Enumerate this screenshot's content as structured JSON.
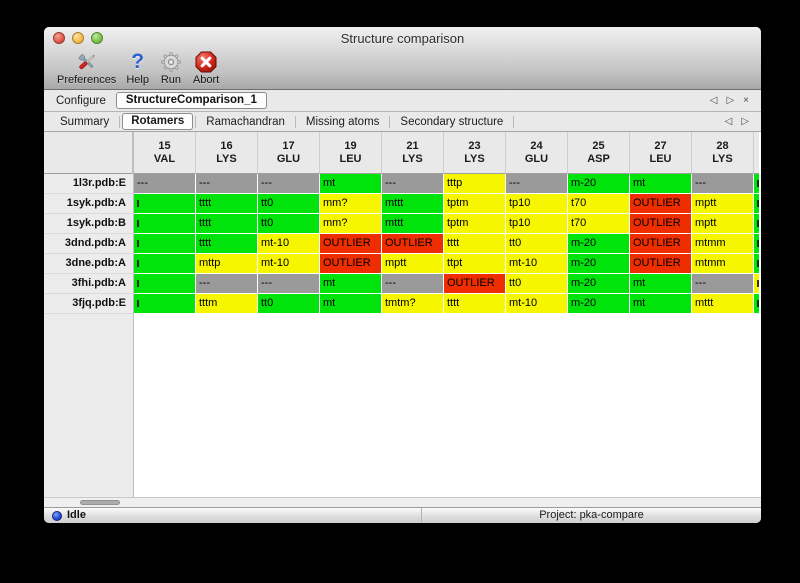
{
  "window_title": "Structure comparison",
  "toolbar": {
    "preferences": "Preferences",
    "help": "Help",
    "help_glyph": "?",
    "run": "Run",
    "abort": "Abort"
  },
  "configure": {
    "label": "Configure",
    "active_config": "StructureComparison_1",
    "nav_prev": "◁",
    "nav_next": "▷",
    "nav_close": "×"
  },
  "tabs": {
    "items": [
      "Summary",
      "Rotamers",
      "Ramachandran",
      "Missing atoms",
      "Secondary structure"
    ],
    "selected": "Rotamers",
    "nav_prev": "◁",
    "nav_next": "▷"
  },
  "colors": {
    "favored": "#00e40b",
    "allowed": "#f6f600",
    "outlier": "#ee2e00",
    "missing": "#9a9a9a"
  },
  "table": {
    "columns": [
      {
        "num": "15",
        "res": "VAL"
      },
      {
        "num": "16",
        "res": "LYS"
      },
      {
        "num": "17",
        "res": "GLU"
      },
      {
        "num": "19",
        "res": "LEU"
      },
      {
        "num": "21",
        "res": "LYS"
      },
      {
        "num": "23",
        "res": "LYS"
      },
      {
        "num": "24",
        "res": "GLU"
      },
      {
        "num": "25",
        "res": "ASP"
      },
      {
        "num": "27",
        "res": "LEU"
      },
      {
        "num": "28",
        "res": "LYS"
      }
    ],
    "rows": [
      {
        "label": "1l3r.pdb:E",
        "cells": [
          {
            "t": "---",
            "s": "missing"
          },
          {
            "t": "---",
            "s": "missing"
          },
          {
            "t": "---",
            "s": "missing"
          },
          {
            "t": "mt",
            "s": "favored"
          },
          {
            "t": "---",
            "s": "missing"
          },
          {
            "t": "tttp",
            "s": "allowed"
          },
          {
            "t": "---",
            "s": "missing"
          },
          {
            "t": "m-20",
            "s": "favored"
          },
          {
            "t": "mt",
            "s": "favored"
          },
          {
            "t": "---",
            "s": "missing"
          }
        ]
      },
      {
        "label": "1syk.pdb:A",
        "cells": [
          {
            "t": "",
            "s": "favored",
            "clip": true
          },
          {
            "t": "tttt",
            "s": "favored"
          },
          {
            "t": "tt0",
            "s": "favored"
          },
          {
            "t": "mm?",
            "s": "allowed"
          },
          {
            "t": "mttt",
            "s": "favored"
          },
          {
            "t": "tptm",
            "s": "allowed"
          },
          {
            "t": "tp10",
            "s": "allowed"
          },
          {
            "t": "t70",
            "s": "allowed"
          },
          {
            "t": "OUTLIER",
            "s": "outlier"
          },
          {
            "t": "mptt",
            "s": "allowed"
          }
        ]
      },
      {
        "label": "1syk.pdb:B",
        "cells": [
          {
            "t": "",
            "s": "favored",
            "clip": true
          },
          {
            "t": "tttt",
            "s": "favored"
          },
          {
            "t": "tt0",
            "s": "favored"
          },
          {
            "t": "mm?",
            "s": "allowed"
          },
          {
            "t": "mttt",
            "s": "favored"
          },
          {
            "t": "tptm",
            "s": "allowed"
          },
          {
            "t": "tp10",
            "s": "allowed"
          },
          {
            "t": "t70",
            "s": "allowed"
          },
          {
            "t": "OUTLIER",
            "s": "outlier"
          },
          {
            "t": "mptt",
            "s": "allowed"
          }
        ]
      },
      {
        "label": "3dnd.pdb:A",
        "cells": [
          {
            "t": "",
            "s": "favored",
            "clip": true
          },
          {
            "t": "tttt",
            "s": "favored"
          },
          {
            "t": "mt-10",
            "s": "allowed"
          },
          {
            "t": "OUTLIER",
            "s": "outlier"
          },
          {
            "t": "OUTLIER",
            "s": "outlier"
          },
          {
            "t": "tttt",
            "s": "allowed"
          },
          {
            "t": "tt0",
            "s": "allowed"
          },
          {
            "t": "m-20",
            "s": "favored"
          },
          {
            "t": "OUTLIER",
            "s": "outlier"
          },
          {
            "t": "mtmm",
            "s": "allowed"
          }
        ]
      },
      {
        "label": "3dne.pdb:A",
        "cells": [
          {
            "t": "",
            "s": "favored",
            "clip": true
          },
          {
            "t": "mttp",
            "s": "allowed"
          },
          {
            "t": "mt-10",
            "s": "allowed"
          },
          {
            "t": "OUTLIER",
            "s": "outlier"
          },
          {
            "t": "mptt",
            "s": "allowed"
          },
          {
            "t": "ttpt",
            "s": "allowed"
          },
          {
            "t": "mt-10",
            "s": "allowed"
          },
          {
            "t": "m-20",
            "s": "favored"
          },
          {
            "t": "OUTLIER",
            "s": "outlier"
          },
          {
            "t": "mtmm",
            "s": "allowed"
          }
        ]
      },
      {
        "label": "3fhi.pdb:A",
        "cells": [
          {
            "t": "",
            "s": "favored",
            "clip": true
          },
          {
            "t": "---",
            "s": "missing"
          },
          {
            "t": "---",
            "s": "missing"
          },
          {
            "t": "mt",
            "s": "favored"
          },
          {
            "t": "---",
            "s": "missing"
          },
          {
            "t": "OUTLIER",
            "s": "outlier"
          },
          {
            "t": "tt0",
            "s": "allowed"
          },
          {
            "t": "m-20",
            "s": "favored"
          },
          {
            "t": "mt",
            "s": "favored"
          },
          {
            "t": "---",
            "s": "missing"
          }
        ]
      },
      {
        "label": "3fjq.pdb:E",
        "cells": [
          {
            "t": "",
            "s": "favored",
            "clip": true
          },
          {
            "t": "tttm",
            "s": "allowed"
          },
          {
            "t": "tt0",
            "s": "favored"
          },
          {
            "t": "mt",
            "s": "favored"
          },
          {
            "t": "tmtm?",
            "s": "allowed"
          },
          {
            "t": "tttt",
            "s": "allowed"
          },
          {
            "t": "mt-10",
            "s": "allowed"
          },
          {
            "t": "m-20",
            "s": "favored"
          },
          {
            "t": "mt",
            "s": "favored"
          },
          {
            "t": "mttt",
            "s": "allowed"
          }
        ]
      }
    ],
    "partial_column_statuses": [
      "favored",
      "favored",
      "favored",
      "favored",
      "favored",
      "allowed",
      "favored"
    ]
  },
  "statusbar": {
    "state": "Idle",
    "project": "Project: pka-compare"
  }
}
